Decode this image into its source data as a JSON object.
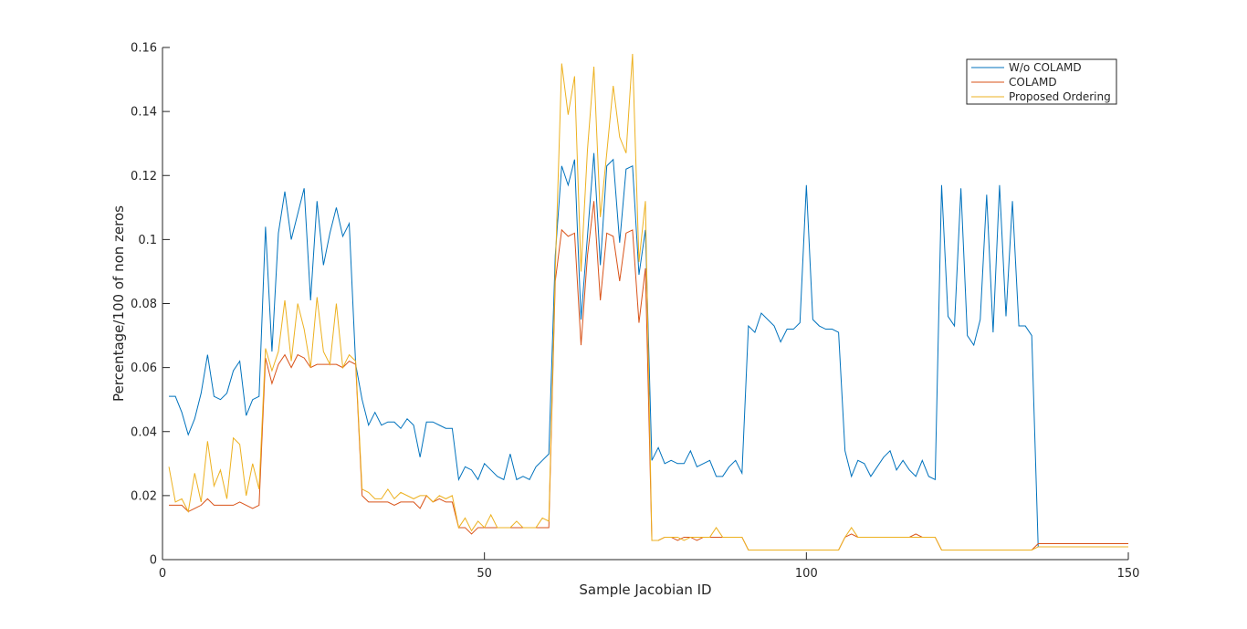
{
  "chart_data": {
    "type": "line",
    "title": "",
    "xlabel": "Sample Jacobian ID",
    "ylabel": "Percentage/100 of non zeros",
    "xlim": [
      0,
      150
    ],
    "ylim": [
      0,
      0.16
    ],
    "xticks": [
      0,
      50,
      100,
      150
    ],
    "yticks": [
      0,
      0.02,
      0.04,
      0.06,
      0.08,
      0.1,
      0.12,
      0.14,
      0.16
    ],
    "xtick_labels": [
      "0",
      "50",
      "100",
      "150"
    ],
    "ytick_labels": [
      "0",
      "0.02",
      "0.04",
      "0.06",
      "0.08",
      "0.1",
      "0.12",
      "0.14",
      "0.16"
    ],
    "grid": false,
    "legend_position": "top-right",
    "series": [
      {
        "name": "W/o COLAMD",
        "color": "#0072BD",
        "values": [
          0.051,
          0.051,
          0.046,
          0.039,
          0.044,
          0.052,
          0.064,
          0.051,
          0.05,
          0.052,
          0.059,
          0.062,
          0.045,
          0.05,
          0.051,
          0.104,
          0.065,
          0.102,
          0.115,
          0.1,
          0.108,
          0.116,
          0.081,
          0.112,
          0.092,
          0.102,
          0.11,
          0.101,
          0.105,
          0.061,
          0.05,
          0.042,
          0.046,
          0.042,
          0.043,
          0.043,
          0.041,
          0.044,
          0.042,
          0.032,
          0.043,
          0.043,
          0.042,
          0.041,
          0.041,
          0.025,
          0.029,
          0.028,
          0.025,
          0.03,
          0.028,
          0.026,
          0.025,
          0.033,
          0.025,
          0.026,
          0.025,
          0.029,
          0.031,
          0.033,
          0.095,
          0.123,
          0.117,
          0.125,
          0.075,
          0.101,
          0.127,
          0.092,
          0.123,
          0.125,
          0.099,
          0.122,
          0.123,
          0.089,
          0.103,
          0.031,
          0.035,
          0.03,
          0.031,
          0.03,
          0.03,
          0.034,
          0.029,
          0.03,
          0.031,
          0.026,
          0.026,
          0.029,
          0.031,
          0.027,
          0.073,
          0.071,
          0.077,
          0.075,
          0.073,
          0.068,
          0.072,
          0.072,
          0.074,
          0.117,
          0.075,
          0.073,
          0.072,
          0.072,
          0.071,
          0.034,
          0.026,
          0.031,
          0.03,
          0.026,
          0.029,
          0.032,
          0.034,
          0.028,
          0.031,
          0.028,
          0.026,
          0.031,
          0.026,
          0.025,
          0.117,
          0.076,
          0.073,
          0.116,
          0.07,
          0.067,
          0.075,
          0.114,
          0.071,
          0.117,
          0.076,
          0.112,
          0.073,
          0.073,
          0.07,
          0.004,
          0.004,
          0.004,
          0.004,
          0.004,
          0.004,
          0.004,
          0.004,
          0.004,
          0.004,
          0.004,
          0.004,
          0.004,
          0.004,
          0.004
        ]
      },
      {
        "name": "COLAMD",
        "color": "#D95319",
        "values": [
          0.017,
          0.017,
          0.017,
          0.015,
          0.016,
          0.017,
          0.019,
          0.017,
          0.017,
          0.017,
          0.017,
          0.018,
          0.017,
          0.016,
          0.017,
          0.063,
          0.055,
          0.061,
          0.064,
          0.06,
          0.064,
          0.063,
          0.06,
          0.061,
          0.061,
          0.061,
          0.061,
          0.06,
          0.062,
          0.061,
          0.02,
          0.018,
          0.018,
          0.018,
          0.018,
          0.017,
          0.018,
          0.018,
          0.018,
          0.016,
          0.02,
          0.018,
          0.019,
          0.018,
          0.018,
          0.01,
          0.01,
          0.008,
          0.01,
          0.01,
          0.01,
          0.01,
          0.01,
          0.01,
          0.01,
          0.01,
          0.01,
          0.01,
          0.01,
          0.01,
          0.087,
          0.103,
          0.101,
          0.102,
          0.067,
          0.095,
          0.112,
          0.081,
          0.102,
          0.101,
          0.087,
          0.102,
          0.103,
          0.074,
          0.091,
          0.006,
          0.006,
          0.007,
          0.007,
          0.006,
          0.007,
          0.007,
          0.006,
          0.007,
          0.007,
          0.007,
          0.007,
          0.007,
          0.007,
          0.007,
          0.003,
          0.003,
          0.003,
          0.003,
          0.003,
          0.003,
          0.003,
          0.003,
          0.003,
          0.003,
          0.003,
          0.003,
          0.003,
          0.003,
          0.003,
          0.007,
          0.008,
          0.007,
          0.007,
          0.007,
          0.007,
          0.007,
          0.007,
          0.007,
          0.007,
          0.007,
          0.008,
          0.007,
          0.007,
          0.007,
          0.003,
          0.003,
          0.003,
          0.003,
          0.003,
          0.003,
          0.003,
          0.003,
          0.003,
          0.003,
          0.003,
          0.003,
          0.003,
          0.003,
          0.003,
          0.005,
          0.005,
          0.005,
          0.005,
          0.005,
          0.005,
          0.005,
          0.005,
          0.005,
          0.005,
          0.005,
          0.005,
          0.005,
          0.005,
          0.005
        ]
      },
      {
        "name": "Proposed Ordering",
        "color": "#EDB120",
        "values": [
          0.029,
          0.018,
          0.019,
          0.015,
          0.027,
          0.018,
          0.037,
          0.023,
          0.028,
          0.019,
          0.038,
          0.036,
          0.02,
          0.03,
          0.022,
          0.066,
          0.059,
          0.065,
          0.081,
          0.062,
          0.08,
          0.072,
          0.06,
          0.082,
          0.065,
          0.061,
          0.08,
          0.06,
          0.064,
          0.062,
          0.022,
          0.021,
          0.019,
          0.019,
          0.022,
          0.019,
          0.021,
          0.02,
          0.019,
          0.02,
          0.02,
          0.018,
          0.02,
          0.019,
          0.02,
          0.01,
          0.013,
          0.009,
          0.012,
          0.01,
          0.014,
          0.01,
          0.01,
          0.01,
          0.012,
          0.01,
          0.01,
          0.01,
          0.013,
          0.012,
          0.09,
          0.155,
          0.139,
          0.151,
          0.09,
          0.128,
          0.154,
          0.107,
          0.127,
          0.148,
          0.132,
          0.127,
          0.158,
          0.093,
          0.112,
          0.006,
          0.006,
          0.007,
          0.007,
          0.007,
          0.006,
          0.007,
          0.007,
          0.007,
          0.007,
          0.01,
          0.007,
          0.007,
          0.007,
          0.007,
          0.003,
          0.003,
          0.003,
          0.003,
          0.003,
          0.003,
          0.003,
          0.003,
          0.003,
          0.003,
          0.003,
          0.003,
          0.003,
          0.003,
          0.003,
          0.007,
          0.01,
          0.007,
          0.007,
          0.007,
          0.007,
          0.007,
          0.007,
          0.007,
          0.007,
          0.007,
          0.007,
          0.007,
          0.007,
          0.007,
          0.003,
          0.003,
          0.003,
          0.003,
          0.003,
          0.003,
          0.003,
          0.003,
          0.003,
          0.003,
          0.003,
          0.003,
          0.003,
          0.003,
          0.003,
          0.004,
          0.004,
          0.004,
          0.004,
          0.004,
          0.004,
          0.004,
          0.004,
          0.004,
          0.004,
          0.004,
          0.004,
          0.004,
          0.004,
          0.004
        ]
      }
    ]
  }
}
